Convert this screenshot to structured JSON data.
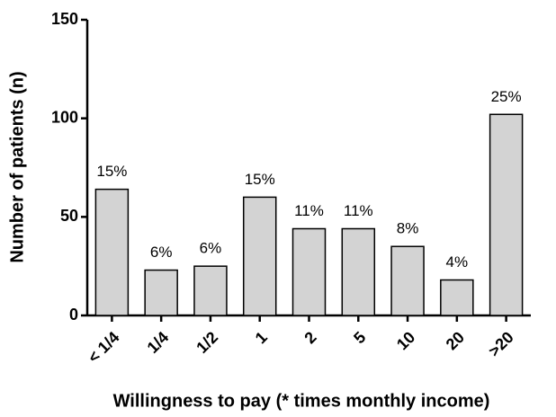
{
  "chart_data": {
    "type": "bar",
    "categories": [
      "< 1/4",
      "1/4",
      "1/2",
      "1",
      "2",
      "5",
      "10",
      "20",
      ">20"
    ],
    "values": [
      64,
      23,
      25,
      60,
      44,
      44,
      35,
      18,
      102
    ],
    "annotations": [
      "15%",
      "6%",
      "6%",
      "15%",
      "11%",
      "11%",
      "8%",
      "4%",
      "25%"
    ],
    "color": "#d3d3d3",
    "ylim": [
      0,
      150
    ],
    "yticks": [
      0,
      50,
      100,
      150
    ],
    "ylabel": "Number of patients (n)",
    "xlabel": "Willingness to pay (* times monthly income)",
    "grid": false
  }
}
